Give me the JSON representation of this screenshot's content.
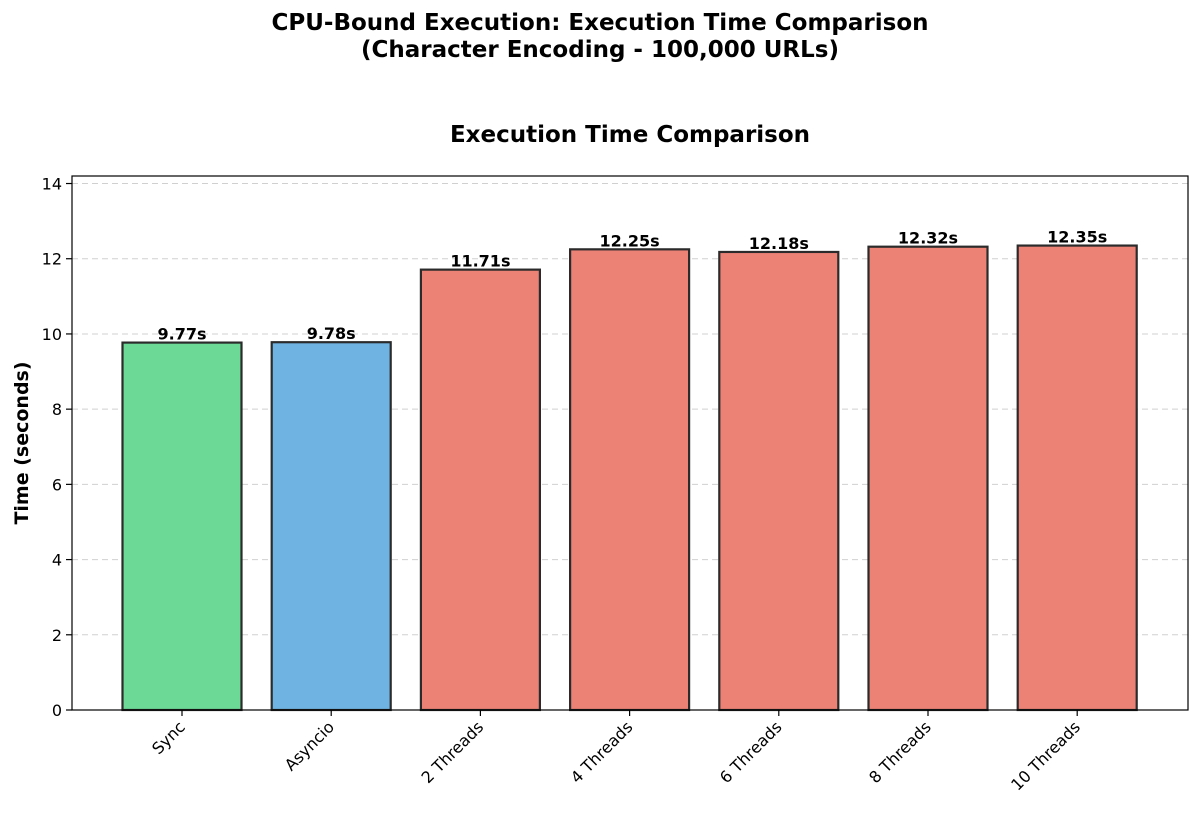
{
  "figure": {
    "suptitle_line1": "CPU-Bound Execution: Execution Time Comparison",
    "suptitle_line2": "(Character Encoding - 100,000 URLs)"
  },
  "chart_data": {
    "type": "bar",
    "title": "Execution Time Comparison",
    "xlabel": "",
    "ylabel": "Time (seconds)",
    "categories": [
      "Sync",
      "Asyncio",
      "2 Threads",
      "4 Threads",
      "6 Threads",
      "8 Threads",
      "10 Threads"
    ],
    "values": [
      9.77,
      9.78,
      11.71,
      12.25,
      12.18,
      12.32,
      12.35
    ],
    "value_labels": [
      "9.77s",
      "9.78s",
      "11.71s",
      "12.25s",
      "12.18s",
      "12.32s",
      "12.35s"
    ],
    "bar_colors": [
      "#6cd996",
      "#6fb3e2",
      "#ec8276",
      "#ec8276",
      "#ec8276",
      "#ec8276",
      "#ec8276"
    ],
    "edge_color": "#2b2b2b",
    "ylim": [
      0,
      14.2
    ],
    "yticks": [
      0,
      2,
      4,
      6,
      8,
      10,
      12,
      14
    ],
    "grid": "y-dashed",
    "legend": "none"
  }
}
